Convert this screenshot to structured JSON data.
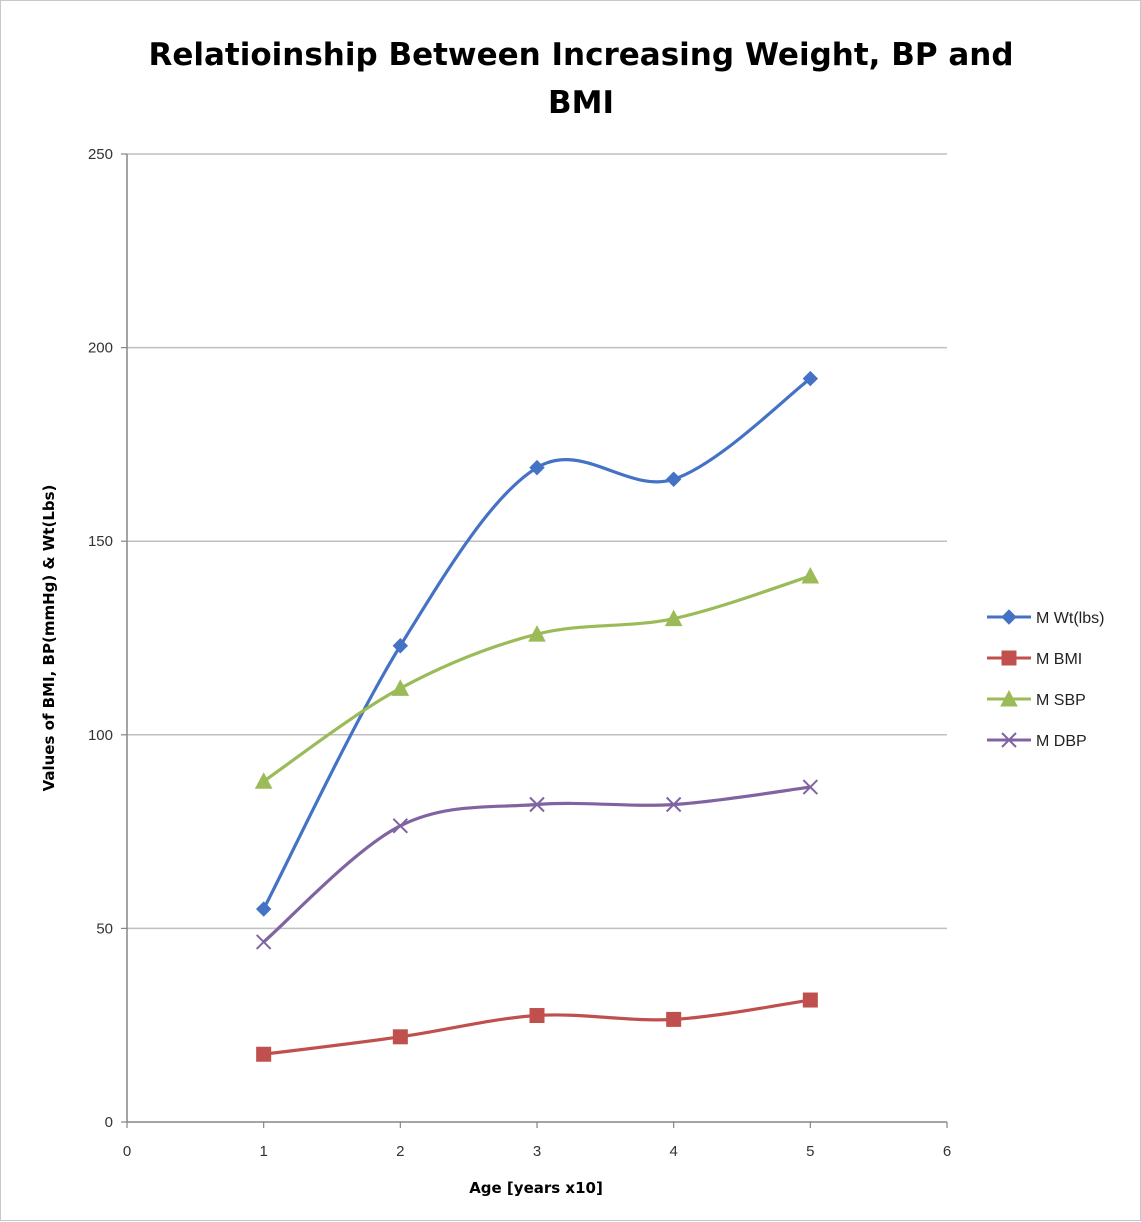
{
  "chart_data": {
    "type": "line",
    "title_lines": [
      "Relatioinship Between Increasing Weight, BP and",
      "BMI"
    ],
    "xlabel": "Age [years x10]",
    "ylabel": "Values of BMI, BP(mmHg) & Wt(Lbs)",
    "xlim": [
      0,
      6
    ],
    "ylim": [
      0,
      250
    ],
    "x_ticks": [
      0,
      1,
      2,
      3,
      4,
      5,
      6
    ],
    "y_ticks": [
      0,
      50,
      100,
      150,
      200,
      250
    ],
    "grid": "horizontal",
    "smooth": true,
    "legend_position": "right",
    "x": [
      1,
      2,
      3,
      4,
      5
    ],
    "series": [
      {
        "name": "M Wt(lbs)",
        "values": [
          55,
          123,
          169,
          166,
          192
        ],
        "color": "#4472c4",
        "marker": "diamond"
      },
      {
        "name": "M BMI",
        "values": [
          17.5,
          22,
          27.5,
          26.5,
          31.5
        ],
        "color": "#c0504d",
        "marker": "square"
      },
      {
        "name": "M SBP",
        "values": [
          88,
          112,
          126,
          130,
          141
        ],
        "color": "#9bbb59",
        "marker": "triangle"
      },
      {
        "name": "M DBP",
        "values": [
          46.5,
          76.5,
          82,
          82,
          86.5
        ],
        "color": "#8064a2",
        "marker": "x"
      }
    ]
  }
}
